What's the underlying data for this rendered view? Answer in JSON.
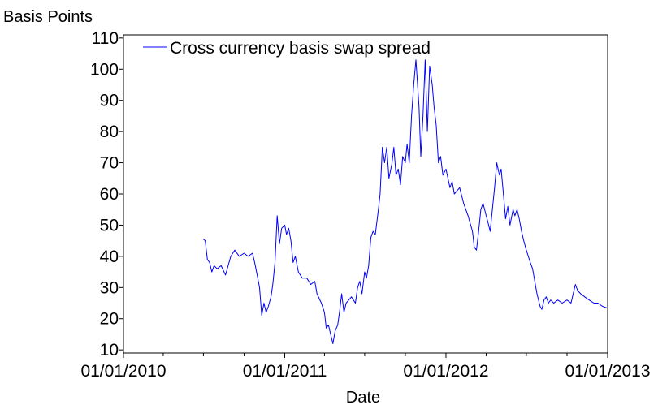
{
  "chart_data": {
    "type": "line",
    "ylabel": "Basis Points",
    "xlabel": "Date",
    "legend_position": "top-left",
    "grid": false,
    "ylim": [
      9,
      111
    ],
    "xlim": [
      "2010-01-01",
      "2013-01-01"
    ],
    "y_ticks": [
      10,
      20,
      30,
      40,
      50,
      60,
      70,
      80,
      90,
      100,
      110
    ],
    "x_ticks": [
      "01/01/2010",
      "01/01/2011",
      "01/01/2012",
      "01/01/2013"
    ],
    "series": [
      {
        "name": "Cross currency basis swap spread",
        "color": "#0000ff",
        "points": [
          [
            "2010-07-01",
            45.5
          ],
          [
            "2010-07-05",
            45.0
          ],
          [
            "2010-07-10",
            39.0
          ],
          [
            "2010-07-15",
            38.0
          ],
          [
            "2010-07-20",
            35.0
          ],
          [
            "2010-07-25",
            37.0
          ],
          [
            "2010-08-01",
            36.0
          ],
          [
            "2010-08-10",
            37.0
          ],
          [
            "2010-08-20",
            34.0
          ],
          [
            "2010-09-01",
            40.0
          ],
          [
            "2010-09-10",
            42.0
          ],
          [
            "2010-09-20",
            40.0
          ],
          [
            "2010-10-01",
            41.0
          ],
          [
            "2010-10-10",
            40.0
          ],
          [
            "2010-10-20",
            41.0
          ],
          [
            "2010-10-25",
            38.0
          ],
          [
            "2010-11-01",
            33.0
          ],
          [
            "2010-11-05",
            30.0
          ],
          [
            "2010-11-10",
            21.0
          ],
          [
            "2010-11-15",
            25.0
          ],
          [
            "2010-11-20",
            22.0
          ],
          [
            "2010-11-25",
            24.0
          ],
          [
            "2010-12-01",
            27.0
          ],
          [
            "2010-12-05",
            31.0
          ],
          [
            "2010-12-10",
            38.0
          ],
          [
            "2010-12-15",
            53.0
          ],
          [
            "2010-12-20",
            44.0
          ],
          [
            "2010-12-25",
            49.0
          ],
          [
            "2011-01-01",
            50.0
          ],
          [
            "2011-01-05",
            47.0
          ],
          [
            "2011-01-10",
            49.0
          ],
          [
            "2011-01-15",
            45.0
          ],
          [
            "2011-01-20",
            38.0
          ],
          [
            "2011-01-25",
            40.0
          ],
          [
            "2011-02-01",
            35.0
          ],
          [
            "2011-02-10",
            33.0
          ],
          [
            "2011-02-20",
            33.0
          ],
          [
            "2011-03-01",
            31.0
          ],
          [
            "2011-03-10",
            32.0
          ],
          [
            "2011-03-15",
            28.0
          ],
          [
            "2011-03-25",
            25.0
          ],
          [
            "2011-04-01",
            22.0
          ],
          [
            "2011-04-05",
            17.0
          ],
          [
            "2011-04-10",
            18.0
          ],
          [
            "2011-04-15",
            15.0
          ],
          [
            "2011-04-20",
            12.0
          ],
          [
            "2011-04-25",
            16.0
          ],
          [
            "2011-05-01",
            18.0
          ],
          [
            "2011-05-05",
            22.0
          ],
          [
            "2011-05-10",
            28.0
          ],
          [
            "2011-05-15",
            22.0
          ],
          [
            "2011-05-20",
            25.0
          ],
          [
            "2011-06-01",
            27.0
          ],
          [
            "2011-06-10",
            25.0
          ],
          [
            "2011-06-15",
            30.0
          ],
          [
            "2011-06-20",
            32.0
          ],
          [
            "2011-06-25",
            28.0
          ],
          [
            "2011-07-01",
            35.0
          ],
          [
            "2011-07-05",
            33.0
          ],
          [
            "2011-07-10",
            37.0
          ],
          [
            "2011-07-15",
            46.0
          ],
          [
            "2011-07-20",
            48.0
          ],
          [
            "2011-07-25",
            47.0
          ],
          [
            "2011-08-01",
            55.0
          ],
          [
            "2011-08-05",
            60.0
          ],
          [
            "2011-08-10",
            75.0
          ],
          [
            "2011-08-15",
            70.0
          ],
          [
            "2011-08-20",
            75.0
          ],
          [
            "2011-08-25",
            65.0
          ],
          [
            "2011-09-01",
            70.0
          ],
          [
            "2011-09-05",
            75.0
          ],
          [
            "2011-09-10",
            66.0
          ],
          [
            "2011-09-15",
            68.0
          ],
          [
            "2011-09-20",
            63.0
          ],
          [
            "2011-09-25",
            72.0
          ],
          [
            "2011-10-01",
            70.0
          ],
          [
            "2011-10-05",
            76.0
          ],
          [
            "2011-10-10",
            70.0
          ],
          [
            "2011-10-15",
            85.0
          ],
          [
            "2011-10-20",
            95.0
          ],
          [
            "2011-10-25",
            103.0
          ],
          [
            "2011-11-01",
            88.0
          ],
          [
            "2011-11-05",
            72.0
          ],
          [
            "2011-11-10",
            85.0
          ],
          [
            "2011-11-15",
            103.0
          ],
          [
            "2011-11-20",
            80.0
          ],
          [
            "2011-11-25",
            101.0
          ],
          [
            "2011-12-01",
            95.0
          ],
          [
            "2011-12-05",
            88.0
          ],
          [
            "2011-12-10",
            82.0
          ],
          [
            "2011-12-15",
            70.0
          ],
          [
            "2011-12-20",
            72.0
          ],
          [
            "2011-12-25",
            66.0
          ],
          [
            "2012-01-01",
            68.0
          ],
          [
            "2012-01-10",
            62.0
          ],
          [
            "2012-01-15",
            64.0
          ],
          [
            "2012-01-20",
            60.0
          ],
          [
            "2012-02-01",
            62.0
          ],
          [
            "2012-02-10",
            57.0
          ],
          [
            "2012-02-15",
            55.0
          ],
          [
            "2012-02-20",
            53.0
          ],
          [
            "2012-03-01",
            48.0
          ],
          [
            "2012-03-05",
            43.0
          ],
          [
            "2012-03-10",
            42.0
          ],
          [
            "2012-03-15",
            48.0
          ],
          [
            "2012-03-20",
            55.0
          ],
          [
            "2012-03-25",
            57.0
          ],
          [
            "2012-04-01",
            53.0
          ],
          [
            "2012-04-05",
            51.0
          ],
          [
            "2012-04-10",
            48.0
          ],
          [
            "2012-04-15",
            55.0
          ],
          [
            "2012-04-20",
            62.0
          ],
          [
            "2012-04-25",
            70.0
          ],
          [
            "2012-05-01",
            66.0
          ],
          [
            "2012-05-05",
            68.0
          ],
          [
            "2012-05-10",
            60.0
          ],
          [
            "2012-05-15",
            52.0
          ],
          [
            "2012-05-20",
            56.0
          ],
          [
            "2012-05-25",
            50.0
          ],
          [
            "2012-06-01",
            55.0
          ],
          [
            "2012-06-05",
            53.0
          ],
          [
            "2012-06-10",
            55.0
          ],
          [
            "2012-06-15",
            52.0
          ],
          [
            "2012-06-20",
            48.0
          ],
          [
            "2012-06-25",
            45.0
          ],
          [
            "2012-07-01",
            42.0
          ],
          [
            "2012-07-10",
            38.0
          ],
          [
            "2012-07-15",
            36.0
          ],
          [
            "2012-07-20",
            32.0
          ],
          [
            "2012-07-25",
            28.0
          ],
          [
            "2012-08-01",
            24.0
          ],
          [
            "2012-08-05",
            23.0
          ],
          [
            "2012-08-10",
            26.0
          ],
          [
            "2012-08-15",
            27.0
          ],
          [
            "2012-08-20",
            25.0
          ],
          [
            "2012-08-25",
            26.0
          ],
          [
            "2012-09-01",
            25.0
          ],
          [
            "2012-09-10",
            26.0
          ],
          [
            "2012-09-20",
            25.0
          ],
          [
            "2012-10-01",
            26.0
          ],
          [
            "2012-10-10",
            25.0
          ],
          [
            "2012-10-20",
            31.0
          ],
          [
            "2012-10-25",
            29.0
          ],
          [
            "2012-11-01",
            28.0
          ],
          [
            "2012-11-10",
            27.0
          ],
          [
            "2012-11-20",
            26.0
          ],
          [
            "2012-12-01",
            25.0
          ],
          [
            "2012-12-10",
            25.0
          ],
          [
            "2012-12-20",
            24.0
          ],
          [
            "2012-12-30",
            23.5
          ]
        ]
      }
    ]
  }
}
